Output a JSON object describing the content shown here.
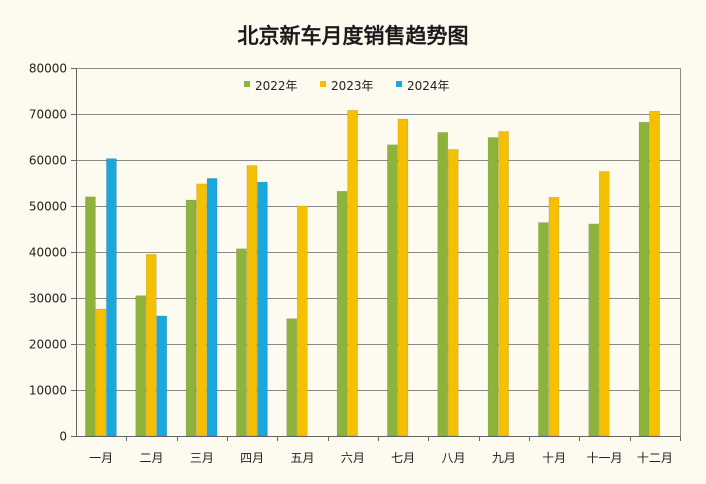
{
  "chart_data": {
    "type": "bar",
    "title": "北京新车月度销售趋势图",
    "xlabel": "",
    "ylabel": "",
    "ylim": [
      0,
      80000
    ],
    "yticks": [
      "0",
      "10000",
      "20000",
      "30000",
      "40000",
      "50000",
      "60000",
      "70000",
      "80000"
    ],
    "categories": [
      "一月",
      "二月",
      "三月",
      "四月",
      "五月",
      "六月",
      "七月",
      "八月",
      "九月",
      "十月",
      "十一月",
      "十二月"
    ],
    "series": [
      {
        "name": "2022年",
        "color": "#8db33c",
        "values": [
          52000,
          30500,
          51300,
          40700,
          25500,
          53200,
          63300,
          66000,
          64900,
          46400,
          46100,
          68200
        ]
      },
      {
        "name": "2023年",
        "color": "#f5c000",
        "values": [
          27600,
          39500,
          54800,
          58800,
          50000,
          70800,
          68900,
          62300,
          66200,
          51900,
          57500,
          70600
        ]
      },
      {
        "name": "2024年",
        "color": "#1aa7dc",
        "values": [
          60300,
          26100,
          56000,
          55200,
          null,
          null,
          null,
          null,
          null,
          null,
          null,
          null
        ]
      }
    ],
    "legend_position": "top-center",
    "grid": true
  }
}
